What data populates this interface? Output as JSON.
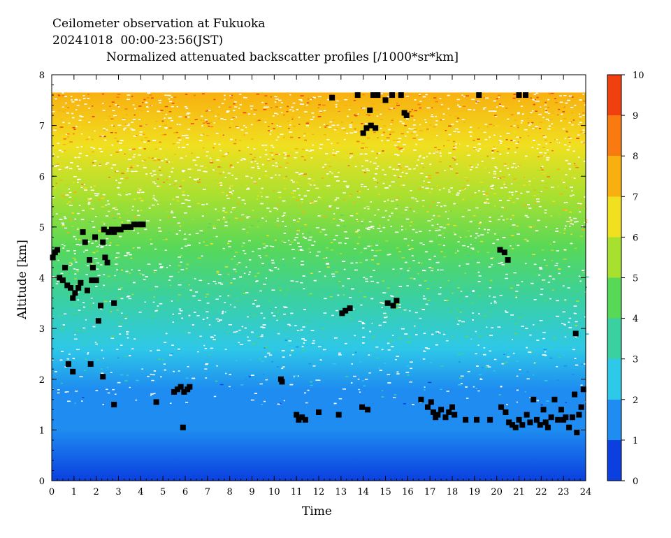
{
  "header": {
    "line1": "Ceilometer observation at Fukuoka",
    "line2": "20241018  00:00-23:56(JST)",
    "line3": "Normalized attenuated backscatter profiles [/1000*sr*km]"
  },
  "chart_data": {
    "type": "heatmap",
    "title": "Normalized attenuated backscatter profiles [/1000*sr*km]",
    "xlabel": "Time",
    "ylabel": "Altitude [km]",
    "xlim": [
      0,
      24
    ],
    "ylim": [
      0,
      8
    ],
    "x_ticks": [
      "0",
      "1",
      "2",
      "3",
      "4",
      "5",
      "6",
      "7",
      "8",
      "9",
      "10",
      "11",
      "12",
      "13",
      "14",
      "15",
      "16",
      "17",
      "18",
      "19",
      "20",
      "21",
      "22",
      "23",
      "24"
    ],
    "y_ticks": [
      "0",
      "1",
      "2",
      "3",
      "4",
      "5",
      "6",
      "7",
      "8"
    ],
    "colorbar": {
      "range": [
        0,
        10
      ],
      "ticks": [
        "0",
        "1",
        "2",
        "3",
        "4",
        "5",
        "6",
        "7",
        "8",
        "9",
        "10"
      ],
      "colors": [
        "#0b3fe0",
        "#1e8cf0",
        "#2ec8e8",
        "#3ad0a0",
        "#58d858",
        "#a8e030",
        "#f0e020",
        "#f8b010",
        "#f87a10",
        "#f04010"
      ]
    },
    "data_top_km": 7.65,
    "background_profile_km": [
      {
        "altitude": 0.0,
        "value": 0.5
      },
      {
        "altitude": 1.0,
        "value": 1.0
      },
      {
        "altitude": 1.8,
        "value": 1.6
      },
      {
        "altitude": 2.6,
        "value": 2.3
      },
      {
        "altitude": 3.6,
        "value": 3.0
      },
      {
        "altitude": 4.6,
        "value": 4.0
      },
      {
        "altitude": 5.6,
        "value": 5.2
      },
      {
        "altitude": 6.6,
        "value": 6.6
      },
      {
        "altitude": 7.65,
        "value": 7.6
      }
    ],
    "cloud_base_series": [
      {
        "name": "cloud base",
        "points": [
          [
            0.05,
            4.4
          ],
          [
            0.15,
            4.5
          ],
          [
            0.25,
            4.55
          ],
          [
            0.35,
            4.0
          ],
          [
            0.5,
            3.95
          ],
          [
            0.6,
            4.2
          ],
          [
            0.7,
            3.85
          ],
          [
            0.85,
            3.8
          ],
          [
            0.95,
            3.6
          ],
          [
            1.05,
            3.7
          ],
          [
            1.2,
            3.8
          ],
          [
            1.3,
            3.9
          ],
          [
            1.4,
            4.9
          ],
          [
            1.5,
            4.7
          ],
          [
            1.6,
            3.75
          ],
          [
            1.7,
            4.35
          ],
          [
            1.8,
            3.95
          ],
          [
            1.85,
            4.2
          ],
          [
            1.95,
            4.8
          ],
          [
            2.0,
            3.95
          ],
          [
            2.1,
            3.15
          ],
          [
            2.2,
            3.45
          ],
          [
            2.3,
            4.7
          ],
          [
            2.35,
            4.95
          ],
          [
            2.4,
            4.4
          ],
          [
            2.5,
            4.3
          ],
          [
            2.55,
            4.9
          ],
          [
            2.7,
            4.95
          ],
          [
            2.8,
            4.9
          ],
          [
            2.95,
            4.95
          ],
          [
            3.1,
            4.95
          ],
          [
            3.25,
            5.0
          ],
          [
            3.4,
            5.0
          ],
          [
            3.55,
            5.0
          ],
          [
            3.7,
            5.05
          ],
          [
            3.85,
            5.05
          ],
          [
            4.0,
            5.05
          ],
          [
            4.1,
            5.05
          ],
          [
            2.3,
            2.05
          ],
          [
            1.75,
            2.3
          ],
          [
            0.75,
            2.3
          ],
          [
            0.95,
            2.15
          ],
          [
            2.8,
            1.5
          ],
          [
            2.8,
            3.5
          ],
          [
            4.7,
            1.55
          ],
          [
            5.5,
            1.75
          ],
          [
            5.65,
            1.8
          ],
          [
            5.8,
            1.85
          ],
          [
            5.95,
            1.75
          ],
          [
            6.1,
            1.8
          ],
          [
            6.2,
            1.85
          ],
          [
            5.9,
            1.05
          ],
          [
            10.3,
            2.0
          ],
          [
            10.35,
            1.95
          ],
          [
            11.0,
            1.3
          ],
          [
            11.1,
            1.2
          ],
          [
            11.25,
            1.25
          ],
          [
            11.4,
            1.2
          ],
          [
            12.0,
            1.35
          ],
          [
            12.9,
            1.3
          ],
          [
            13.05,
            3.3
          ],
          [
            13.2,
            3.35
          ],
          [
            13.4,
            3.4
          ],
          [
            13.95,
            1.45
          ],
          [
            14.2,
            1.4
          ],
          [
            14.0,
            6.85
          ],
          [
            14.15,
            6.95
          ],
          [
            14.35,
            7.0
          ],
          [
            14.55,
            6.95
          ],
          [
            14.3,
            7.3
          ],
          [
            13.75,
            7.6
          ],
          [
            14.45,
            7.6
          ],
          [
            14.65,
            7.6
          ],
          [
            15.0,
            7.5
          ],
          [
            15.3,
            7.6
          ],
          [
            15.7,
            7.6
          ],
          [
            15.85,
            7.25
          ],
          [
            15.95,
            7.2
          ],
          [
            12.6,
            7.55
          ],
          [
            15.1,
            3.5
          ],
          [
            15.35,
            3.45
          ],
          [
            15.5,
            3.55
          ],
          [
            16.6,
            1.6
          ],
          [
            16.9,
            1.45
          ],
          [
            17.05,
            1.55
          ],
          [
            17.15,
            1.35
          ],
          [
            17.25,
            1.25
          ],
          [
            17.35,
            1.3
          ],
          [
            17.5,
            1.4
          ],
          [
            17.7,
            1.25
          ],
          [
            17.85,
            1.35
          ],
          [
            18.0,
            1.45
          ],
          [
            18.1,
            1.3
          ],
          [
            18.6,
            1.2
          ],
          [
            19.1,
            1.2
          ],
          [
            19.7,
            1.2
          ],
          [
            20.2,
            1.45
          ],
          [
            20.4,
            1.35
          ],
          [
            20.55,
            1.15
          ],
          [
            20.7,
            1.1
          ],
          [
            20.85,
            1.05
          ],
          [
            21.0,
            1.2
          ],
          [
            21.15,
            1.1
          ],
          [
            21.35,
            1.3
          ],
          [
            21.5,
            1.15
          ],
          [
            21.65,
            1.6
          ],
          [
            21.8,
            1.2
          ],
          [
            21.95,
            1.1
          ],
          [
            22.1,
            1.4
          ],
          [
            22.2,
            1.15
          ],
          [
            22.3,
            1.05
          ],
          [
            22.45,
            1.25
          ],
          [
            22.6,
            1.6
          ],
          [
            22.75,
            1.2
          ],
          [
            22.9,
            1.4
          ],
          [
            23.0,
            1.2
          ],
          [
            23.1,
            1.25
          ],
          [
            23.25,
            1.05
          ],
          [
            23.4,
            1.25
          ],
          [
            23.5,
            1.7
          ],
          [
            23.6,
            0.95
          ],
          [
            23.7,
            1.3
          ],
          [
            23.8,
            1.45
          ],
          [
            23.9,
            1.8
          ],
          [
            23.55,
            2.9
          ],
          [
            20.15,
            4.55
          ],
          [
            20.35,
            4.5
          ],
          [
            20.5,
            4.35
          ],
          [
            19.2,
            7.6
          ],
          [
            21.0,
            7.6
          ],
          [
            21.3,
            7.6
          ]
        ]
      }
    ]
  }
}
